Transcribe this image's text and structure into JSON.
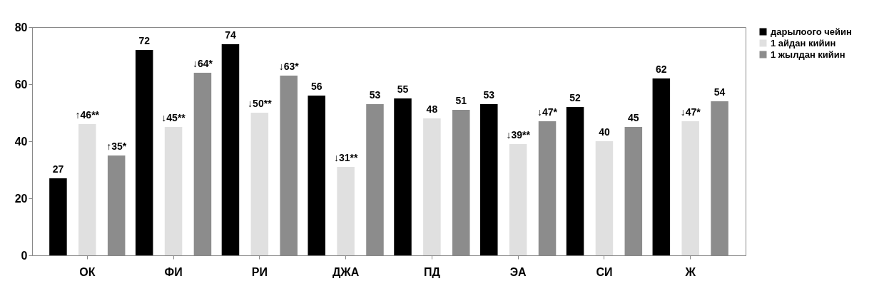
{
  "chart_data": {
    "type": "bar",
    "categories": [
      "ОК",
      "ФИ",
      "РИ",
      "ДЖА",
      "ПД",
      "ЭА",
      "СИ",
      "Ж"
    ],
    "series": [
      {
        "name": "дарылоого чейин",
        "color": "#000000",
        "values": [
          27,
          72,
          74,
          56,
          55,
          53,
          52,
          62
        ],
        "value_labels": [
          "27",
          "72",
          "74",
          "56",
          "55",
          "53",
          "52",
          "62"
        ]
      },
      {
        "name": "1 айдан кийин",
        "color": "#e0e0e0",
        "values": [
          46,
          45,
          50,
          31,
          48,
          39,
          40,
          47
        ],
        "value_labels": [
          "↑46**",
          "↓45**",
          "↓50**",
          "↓31**",
          "48",
          "↓39**",
          "40",
          "↓47*"
        ]
      },
      {
        "name": "1 жылдан кийин",
        "color": "#8c8c8c",
        "values": [
          35,
          64,
          63,
          53,
          51,
          47,
          45,
          54
        ],
        "value_labels": [
          "↑35*",
          "↓64*",
          "↓63*",
          "53",
          "51",
          "↓47*",
          "45",
          "54"
        ]
      }
    ],
    "ylim": [
      0,
      80
    ],
    "yticks": [
      0,
      20,
      40,
      60,
      80
    ],
    "grid": false,
    "legend": "right"
  }
}
